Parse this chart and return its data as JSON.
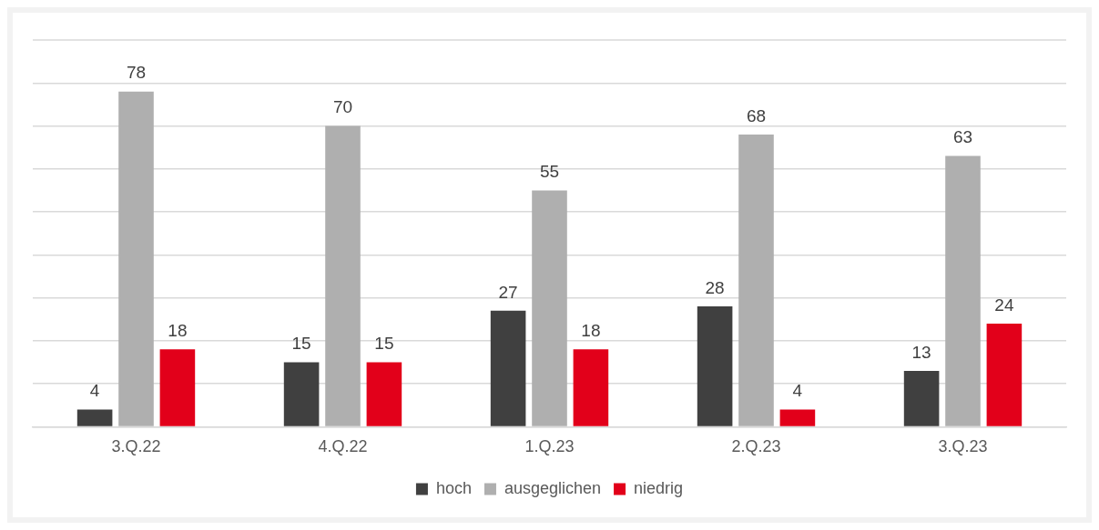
{
  "chart_data": {
    "type": "bar",
    "categories": [
      "3.Q.22",
      "4.Q.22",
      "1.Q.23",
      "2.Q.23",
      "3.Q.23"
    ],
    "series": [
      {
        "name": "hoch",
        "color": "#404040",
        "values": [
          4,
          15,
          27,
          28,
          13
        ]
      },
      {
        "name": "ausgeglichen",
        "color": "#afafaf",
        "values": [
          78,
          70,
          55,
          68,
          63
        ]
      },
      {
        "name": "niedrig",
        "color": "#e2001a",
        "values": [
          18,
          15,
          18,
          4,
          24
        ]
      }
    ],
    "ylim": [
      0,
      90
    ],
    "yticks": [
      {
        "value": 0,
        "label": null
      },
      {
        "value": 10,
        "label": null
      },
      {
        "value": 20,
        "label": null
      },
      {
        "value": 30,
        "label": null
      },
      {
        "value": 40,
        "label": null
      },
      {
        "value": 50,
        "label": null
      },
      {
        "value": 60,
        "label": null
      },
      {
        "value": 70,
        "label": null
      },
      {
        "value": 80,
        "label": null
      }
    ],
    "tick_labels": "x",
    "grid": "y",
    "legend": "bottom",
    "data_labels": true
  }
}
